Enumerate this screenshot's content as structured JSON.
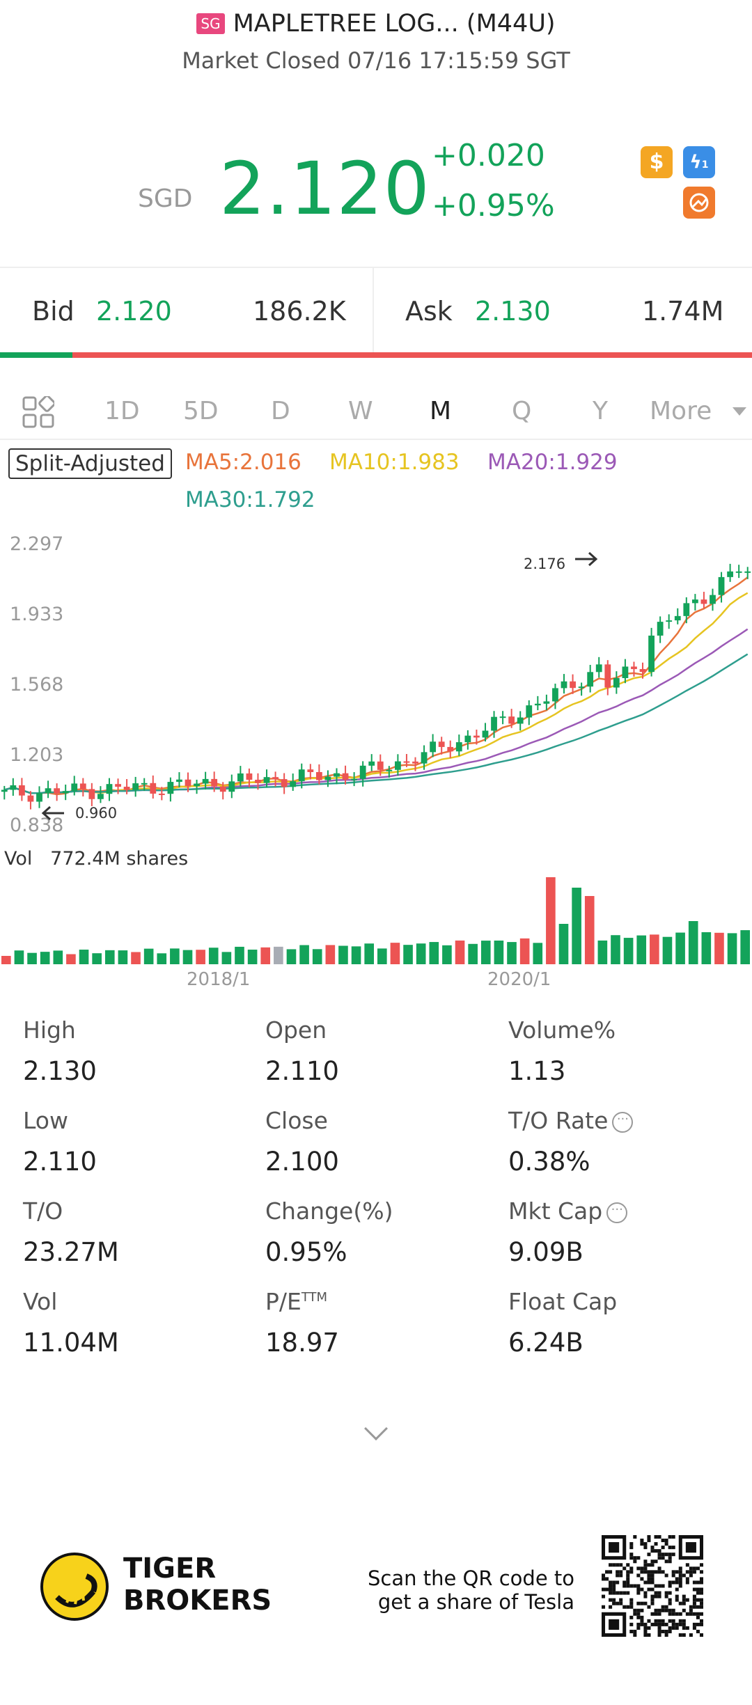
{
  "header": {
    "badge": "SG",
    "title": "MAPLETREE LOG... (M44U)",
    "status": "Market Closed 07/16 17:15:59 SGT"
  },
  "quote": {
    "currency": "SGD",
    "price": "2.120",
    "change": "+0.020",
    "change_pct": "+0.95%",
    "icons": [
      "dollar-icon",
      "lightning-level-1-icon",
      "options-icon"
    ]
  },
  "bid_ask": {
    "bid_label": "Bid",
    "bid_price": "2.120",
    "bid_size": "186.2K",
    "ask_label": "Ask",
    "ask_price": "2.130",
    "ask_size": "1.74M",
    "bid_fraction": 0.096
  },
  "periods": {
    "items": [
      "1D",
      "5D",
      "D",
      "W",
      "M",
      "Q",
      "Y",
      "More"
    ],
    "active": "M"
  },
  "chart_controls": {
    "split_adjusted": "Split-Adjusted",
    "ma5": "MA5:2.016",
    "ma10": "MA10:1.983",
    "ma20": "MA20:1.929",
    "ma30": "MA30:1.792"
  },
  "colors": {
    "up": "#13a35a",
    "down": "#ec5453",
    "neutral": "#a8acb4",
    "ma5": "#e8743b",
    "ma10": "#e6c421",
    "ma20": "#9b59b6",
    "ma30": "#2e9e8e"
  },
  "chart_data": {
    "type": "candlestick",
    "y_ticks": [
      "2.297",
      "1.933",
      "1.568",
      "1.203",
      "0.838"
    ],
    "ylim": [
      0.838,
      2.297
    ],
    "x_ticks": [
      "2018/1",
      "2020/1"
    ],
    "high_marker": "2.176",
    "low_marker": "0.960",
    "volume_label": "Vol",
    "volume_value": "772.4M shares"
  },
  "stats": {
    "high_label": "High",
    "high": "2.130",
    "open_label": "Open",
    "open": "2.110",
    "volpct_label": "Volume%",
    "volpct": "1.13",
    "low_label": "Low",
    "low": "2.110",
    "close_label": "Close",
    "close": "2.100",
    "torate_label": "T/O Rate",
    "torate": "0.38%",
    "to_label": "T/O",
    "to": "23.27M",
    "changepct_label": "Change(%)",
    "changepct": "0.95%",
    "mktcap_label": "Mkt Cap",
    "mktcap": "9.09B",
    "vol_label": "Vol",
    "vol": "11.04M",
    "pe_label": "P/E",
    "pe_sup": "TTM",
    "pe": "18.97",
    "floatcap_label": "Float Cap",
    "floatcap": "6.24B"
  },
  "footer": {
    "brand_line1": "TIGER",
    "brand_line2": "BROKERS",
    "scan_line1": "Scan the QR code to",
    "scan_line2": "get a share of Tesla"
  }
}
